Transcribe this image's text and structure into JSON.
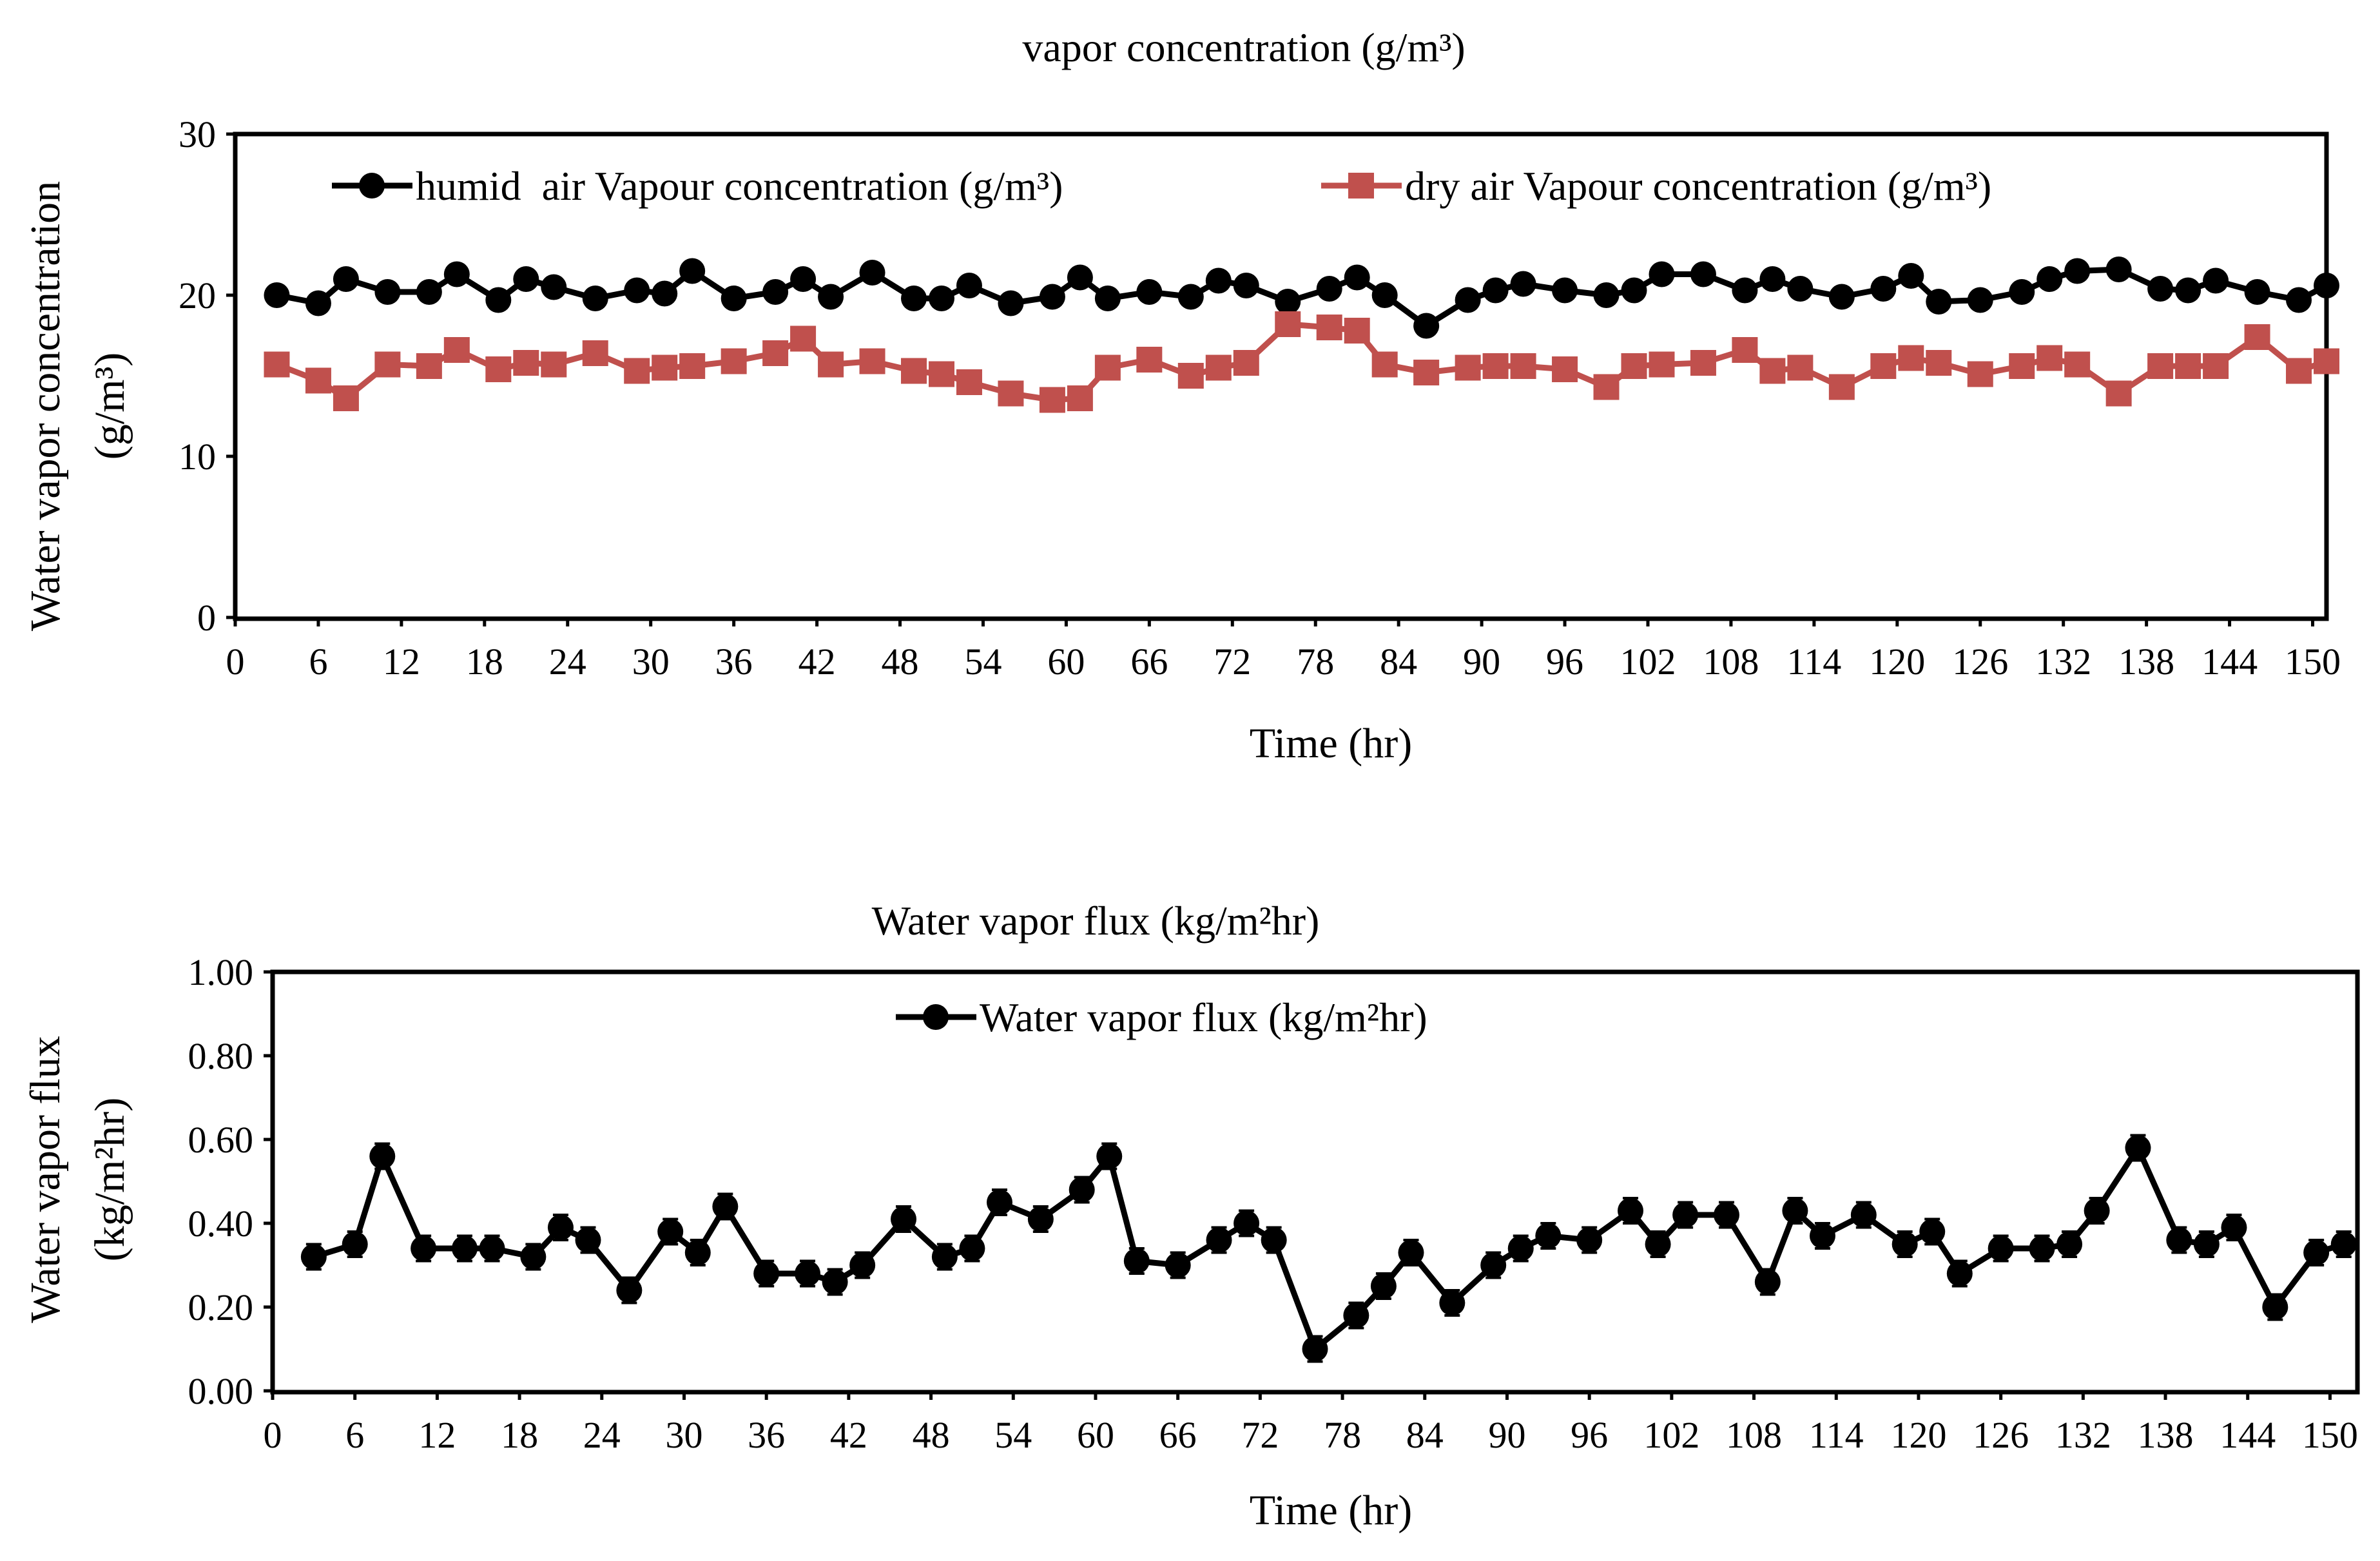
{
  "colors": {
    "humid": "#000000",
    "dry": "#c0504d",
    "flux": "#000000",
    "axis": "#000000"
  },
  "chart_data": [
    {
      "type": "line",
      "title": "vapor concentration (g/m³)",
      "xlabel": "Time (hr)",
      "ylabel_line1": "Water vapor concentration",
      "ylabel_line2": "(g/m³)",
      "xlim": [
        0,
        151
      ],
      "ylim": [
        0,
        30
      ],
      "xticks": [
        "0",
        "6",
        "12",
        "18",
        "24",
        "30",
        "36",
        "42",
        "48",
        "54",
        "60",
        "66",
        "72",
        "78",
        "84",
        "90",
        "96",
        "102",
        "108",
        "114",
        "120",
        "126",
        "132",
        "138",
        "144",
        "150"
      ],
      "yticks": [
        "0",
        "10",
        "20",
        "30"
      ],
      "legend": "top",
      "x": [
        3,
        6,
        8,
        11,
        14,
        16,
        19,
        21,
        23,
        26,
        29,
        31,
        33,
        36,
        39,
        41,
        43,
        46,
        49,
        51,
        53,
        56,
        59,
        61,
        63,
        66,
        69,
        71,
        73,
        76,
        79,
        81,
        83,
        86,
        89,
        91,
        93,
        96,
        99,
        101,
        103,
        106,
        109,
        111,
        113,
        116,
        119,
        121,
        123,
        126,
        129,
        131,
        133,
        136,
        139,
        141,
        143,
        146,
        149,
        151
      ],
      "series": [
        {
          "name": "humid  air Vapour concentration (g/m³)",
          "marker": "circle",
          "values": [
            20.0,
            19.5,
            21.0,
            20.2,
            20.2,
            21.3,
            19.7,
            21.0,
            20.5,
            19.8,
            20.3,
            20.1,
            21.5,
            19.8,
            20.2,
            21.0,
            19.9,
            21.4,
            19.8,
            19.8,
            20.6,
            19.5,
            19.9,
            21.1,
            19.8,
            20.2,
            19.9,
            20.9,
            20.6,
            19.6,
            20.4,
            21.1,
            20.0,
            18.1,
            19.7,
            20.3,
            20.7,
            20.3,
            20.0,
            20.3,
            21.3,
            21.3,
            20.3,
            21.0,
            20.4,
            19.9,
            20.4,
            21.2,
            19.6,
            19.7,
            20.2,
            21.0,
            21.5,
            21.6,
            20.4,
            20.3,
            20.9,
            20.2,
            19.7,
            20.6
          ]
        },
        {
          "name": "dry air Vapour concentration (g/m³)",
          "marker": "square",
          "values": [
            15.7,
            14.7,
            13.6,
            15.7,
            15.6,
            16.6,
            15.4,
            15.8,
            15.7,
            16.4,
            15.3,
            15.5,
            15.6,
            15.9,
            16.4,
            17.3,
            15.7,
            15.9,
            15.3,
            15.1,
            14.6,
            13.9,
            13.5,
            13.6,
            15.5,
            16.0,
            15.0,
            15.5,
            15.8,
            18.2,
            18.0,
            17.8,
            15.7,
            15.2,
            15.5,
            15.6,
            15.6,
            15.4,
            14.3,
            15.6,
            15.7,
            15.8,
            16.6,
            15.3,
            15.5,
            14.3,
            15.6,
            16.1,
            15.8,
            15.1,
            15.6,
            16.1,
            15.7,
            13.9,
            15.6,
            15.6,
            15.6,
            17.4,
            15.3,
            15.9
          ]
        }
      ]
    },
    {
      "type": "line",
      "title": "Water vapor flux (kg/m²hr)",
      "xlabel": "Time (hr)",
      "ylabel_line1": "Water vapor flux",
      "ylabel_line2": "(kg/m²hr)",
      "xlim": [
        0,
        152
      ],
      "ylim": [
        0,
        1.0
      ],
      "xticks": [
        "0",
        "6",
        "12",
        "18",
        "24",
        "30",
        "36",
        "42",
        "48",
        "54",
        "60",
        "66",
        "72",
        "78",
        "84",
        "90",
        "96",
        "102",
        "108",
        "114",
        "120",
        "126",
        "132",
        "138",
        "144",
        "150"
      ],
      "yticks": [
        "0.00",
        "0.20",
        "0.40",
        "0.60",
        "0.80",
        "1.00"
      ],
      "legend": "top",
      "error_bar": 0.03,
      "x": [
        3,
        6,
        8,
        11,
        14,
        16,
        19,
        21,
        23,
        26,
        29,
        31,
        33,
        36,
        39,
        41,
        43,
        46,
        49,
        51,
        53,
        56,
        59,
        61,
        63,
        66,
        69,
        71,
        73,
        76,
        79,
        81,
        83,
        86,
        89,
        91,
        93,
        96,
        99,
        101,
        103,
        106,
        109,
        111,
        113,
        116,
        119,
        121,
        123,
        126,
        129,
        131,
        133,
        136,
        139,
        141,
        143,
        146,
        149,
        151
      ],
      "series": [
        {
          "name": "Water vapor flux (kg/m²hr)",
          "marker": "circle",
          "values": [
            0.32,
            0.35,
            0.56,
            0.34,
            0.34,
            0.34,
            0.32,
            0.39,
            0.36,
            0.24,
            0.38,
            0.33,
            0.44,
            0.28,
            0.28,
            0.26,
            0.3,
            0.41,
            0.32,
            0.34,
            0.45,
            0.41,
            0.48,
            0.56,
            0.31,
            0.3,
            0.36,
            0.4,
            0.36,
            0.1,
            0.18,
            0.25,
            0.33,
            0.21,
            0.3,
            0.34,
            0.37,
            0.36,
            0.43,
            0.35,
            0.42,
            0.42,
            0.26,
            0.43,
            0.37,
            0.42,
            0.35,
            0.38,
            0.28,
            0.34,
            0.34,
            0.35,
            0.43,
            0.58,
            0.36,
            0.35,
            0.39,
            0.2,
            0.33,
            0.35
          ]
        }
      ]
    }
  ]
}
